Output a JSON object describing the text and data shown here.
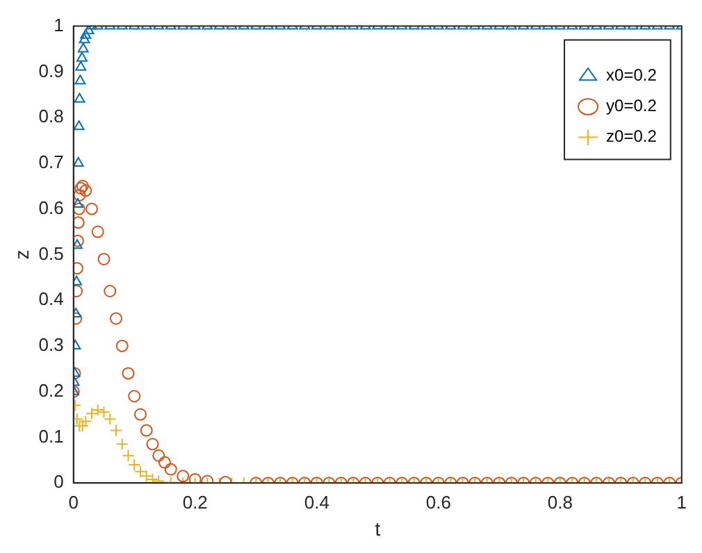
{
  "chart_data": {
    "type": "scatter",
    "xlabel": "t",
    "ylabel": "z",
    "xlim": [
      0,
      1
    ],
    "ylim": [
      0,
      1
    ],
    "xticks": [
      0,
      0.2,
      0.4,
      0.6,
      0.8,
      1
    ],
    "yticks": [
      0,
      0.1,
      0.2,
      0.3,
      0.4,
      0.5,
      0.6,
      0.7,
      0.8,
      0.9,
      1
    ],
    "grid": false,
    "legend": "top right",
    "series": [
      {
        "name": "x0=0.2",
        "color": "#0072bd",
        "marker": "triangle",
        "x": [
          0,
          0.001,
          0.002,
          0.003,
          0.004,
          0.005,
          0.006,
          0.007,
          0.008,
          0.009,
          0.01,
          0.011,
          0.012,
          0.014,
          0.016,
          0.018,
          0.02,
          0.025,
          0.03,
          0.04,
          0.06,
          0.08,
          0.1,
          0.12,
          0.14,
          0.16,
          0.18,
          0.2,
          0.22,
          0.24,
          0.26,
          0.28,
          0.3,
          0.32,
          0.34,
          0.36,
          0.38,
          0.4,
          0.42,
          0.44,
          0.46,
          0.48,
          0.5,
          0.52,
          0.54,
          0.56,
          0.58,
          0.6,
          0.62,
          0.64,
          0.66,
          0.68,
          0.7,
          0.72,
          0.74,
          0.76,
          0.78,
          0.8,
          0.82,
          0.84,
          0.86,
          0.88,
          0.9,
          0.92,
          0.94,
          0.96,
          0.98,
          1
        ],
        "values": [
          0.2,
          0.22,
          0.24,
          0.3,
          0.37,
          0.44,
          0.52,
          0.61,
          0.7,
          0.78,
          0.84,
          0.88,
          0.91,
          0.93,
          0.95,
          0.97,
          0.98,
          0.99,
          1,
          1,
          1,
          1,
          1,
          1,
          1,
          1,
          1,
          1,
          1,
          1,
          1,
          1,
          1,
          1,
          1,
          1,
          1,
          1,
          1,
          1,
          1,
          1,
          1,
          1,
          1,
          1,
          1,
          1,
          1,
          1,
          1,
          1,
          1,
          1,
          1,
          1,
          1,
          1,
          1,
          1,
          1,
          1,
          1,
          1,
          1,
          1,
          1,
          1
        ]
      },
      {
        "name": "y0=0.2",
        "color": "#d95319",
        "marker": "circle",
        "x": [
          0,
          0.002,
          0.004,
          0.005,
          0.006,
          0.007,
          0.008,
          0.009,
          0.01,
          0.012,
          0.015,
          0.02,
          0.03,
          0.04,
          0.05,
          0.06,
          0.07,
          0.08,
          0.09,
          0.1,
          0.11,
          0.12,
          0.13,
          0.14,
          0.15,
          0.16,
          0.18,
          0.2,
          0.22,
          0.25,
          0.3,
          0.32,
          0.34,
          0.36,
          0.38,
          0.4,
          0.42,
          0.44,
          0.46,
          0.48,
          0.5,
          0.52,
          0.54,
          0.56,
          0.58,
          0.6,
          0.62,
          0.64,
          0.66,
          0.68,
          0.7,
          0.72,
          0.74,
          0.76,
          0.78,
          0.8,
          0.82,
          0.84,
          0.86,
          0.88,
          0.9,
          0.92,
          0.94,
          0.96,
          0.98,
          1
        ],
        "values": [
          0.2,
          0.24,
          0.36,
          0.42,
          0.47,
          0.53,
          0.57,
          0.6,
          0.63,
          0.645,
          0.65,
          0.64,
          0.6,
          0.55,
          0.49,
          0.42,
          0.36,
          0.3,
          0.24,
          0.19,
          0.15,
          0.115,
          0.085,
          0.06,
          0.045,
          0.03,
          0.015,
          0.008,
          0.004,
          0.002,
          0,
          0,
          0,
          0,
          0,
          0,
          0,
          0,
          0,
          0,
          0,
          0,
          0,
          0,
          0,
          0,
          0,
          0,
          0,
          0,
          0,
          0,
          0,
          0,
          0,
          0,
          0,
          0,
          0,
          0,
          0,
          0,
          0,
          0,
          0,
          0
        ]
      },
      {
        "name": "z0=0.2",
        "color": "#edb120",
        "marker": "cross",
        "x": [
          0,
          0.003,
          0.006,
          0.01,
          0.015,
          0.02,
          0.03,
          0.04,
          0.05,
          0.06,
          0.07,
          0.08,
          0.09,
          0.1,
          0.11,
          0.12,
          0.13,
          0.14,
          0.16,
          0.18,
          0.2,
          0.22,
          0.24,
          0.26,
          0.28,
          0.3,
          0.32,
          0.34,
          0.36,
          0.38,
          0.4,
          0.42,
          0.44,
          0.46,
          0.48,
          0.5,
          0.52,
          0.54,
          0.56,
          0.58,
          0.6,
          0.62,
          0.64,
          0.66,
          0.68,
          0.7,
          0.72,
          0.74,
          0.76,
          0.78,
          0.8,
          0.82,
          0.84,
          0.86,
          0.88,
          0.9,
          0.92,
          0.94,
          0.96,
          0.98,
          1
        ],
        "values": [
          0.2,
          0.17,
          0.14,
          0.125,
          0.125,
          0.135,
          0.152,
          0.16,
          0.155,
          0.14,
          0.115,
          0.085,
          0.06,
          0.04,
          0.025,
          0.015,
          0.008,
          0.004,
          0.001,
          0,
          0,
          0,
          0,
          0,
          0,
          0,
          0,
          0,
          0,
          0,
          0,
          0,
          0,
          0,
          0,
          0,
          0,
          0,
          0,
          0,
          0,
          0,
          0,
          0,
          0,
          0,
          0,
          0,
          0,
          0,
          0,
          0,
          0,
          0,
          0,
          0,
          0,
          0,
          0,
          0,
          0
        ]
      }
    ]
  }
}
